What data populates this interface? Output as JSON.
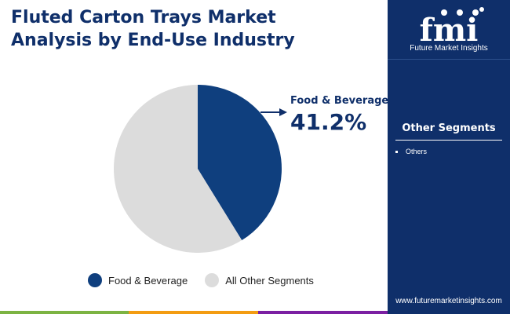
{
  "title_line1": "Fluted Carton Trays Market",
  "title_line2": "Analysis by End-Use Industry",
  "callout": {
    "label": "Food & Beverage",
    "value": "41.2%"
  },
  "chart_data": {
    "type": "pie",
    "title": "Fluted Carton Trays Market Analysis by End-Use Industry",
    "slices": [
      {
        "name": "Food & Beverage",
        "value": 41.2,
        "color": "#0f3f7e"
      },
      {
        "name": "All Other Segments",
        "value": 58.8,
        "color": "#dcdcdc"
      }
    ],
    "start_angle": "12 o'clock",
    "direction": "clockwise",
    "legend_position": "bottom"
  },
  "legend": [
    {
      "label": "Food & Beverage",
      "color": "#0f3f7e"
    },
    {
      "label": "All Other Segments",
      "color": "#dcdcdc"
    }
  ],
  "sidebar": {
    "logo_text": "fmi",
    "logo_caption": "Future Market Insights",
    "segments_title": "Other Segments",
    "segments": [
      "Others"
    ],
    "website": "www.futuremarketinsights.com"
  },
  "colors": {
    "brand": "#0f2f6a",
    "accent_green": "#7cb342",
    "accent_orange": "#f39c12",
    "accent_purple": "#7b1fa2"
  }
}
